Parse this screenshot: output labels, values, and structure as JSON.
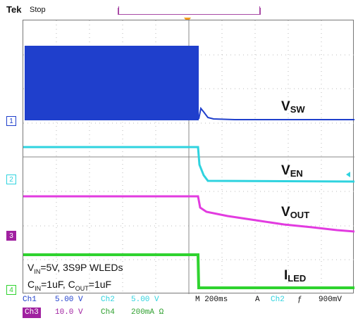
{
  "header": {
    "brand": "Tek",
    "status": "Stop"
  },
  "channels": [
    {
      "marker": "1",
      "color": "#1f3fcc",
      "label_main": "V",
      "label_sub": "SW"
    },
    {
      "marker": "2",
      "color": "#2fd3df",
      "label_main": "V",
      "label_sub": "EN"
    },
    {
      "marker": "3",
      "color": "#e23be0",
      "label_main": "V",
      "label_sub": "OUT"
    },
    {
      "marker": "4",
      "color": "#2fd32f",
      "label_main": "I",
      "label_sub": "LED"
    }
  ],
  "notes": {
    "line1_a": "V",
    "line1_sub": "IN",
    "line1_b": "=5V, 3S9P WLEDs",
    "line2_a": "C",
    "line2_sub1": "IN",
    "line2_b": "=1uF, C",
    "line2_sub2": "OUT",
    "line2_c": "=1uF"
  },
  "readouts": {
    "ch1_name": "Ch1",
    "ch1_scale": "5.00 V",
    "ch2_name": "Ch2",
    "ch2_scale": "5.00 V",
    "ch3_name": "Ch3",
    "ch3_scale": "10.0 V",
    "ch4_name": "Ch4",
    "ch4_scale": "200mA Ω",
    "timebase": "M 200ms",
    "acq": "A",
    "trig_src": "Ch2",
    "trig_slope": "ƒ",
    "trig_level": "900mV"
  },
  "colors": {
    "ch1": "#1f3fcc",
    "ch2": "#2fd3df",
    "ch3": "#e23be0",
    "ch4": "#2fd32f",
    "trigger": "#f29a1f"
  }
}
